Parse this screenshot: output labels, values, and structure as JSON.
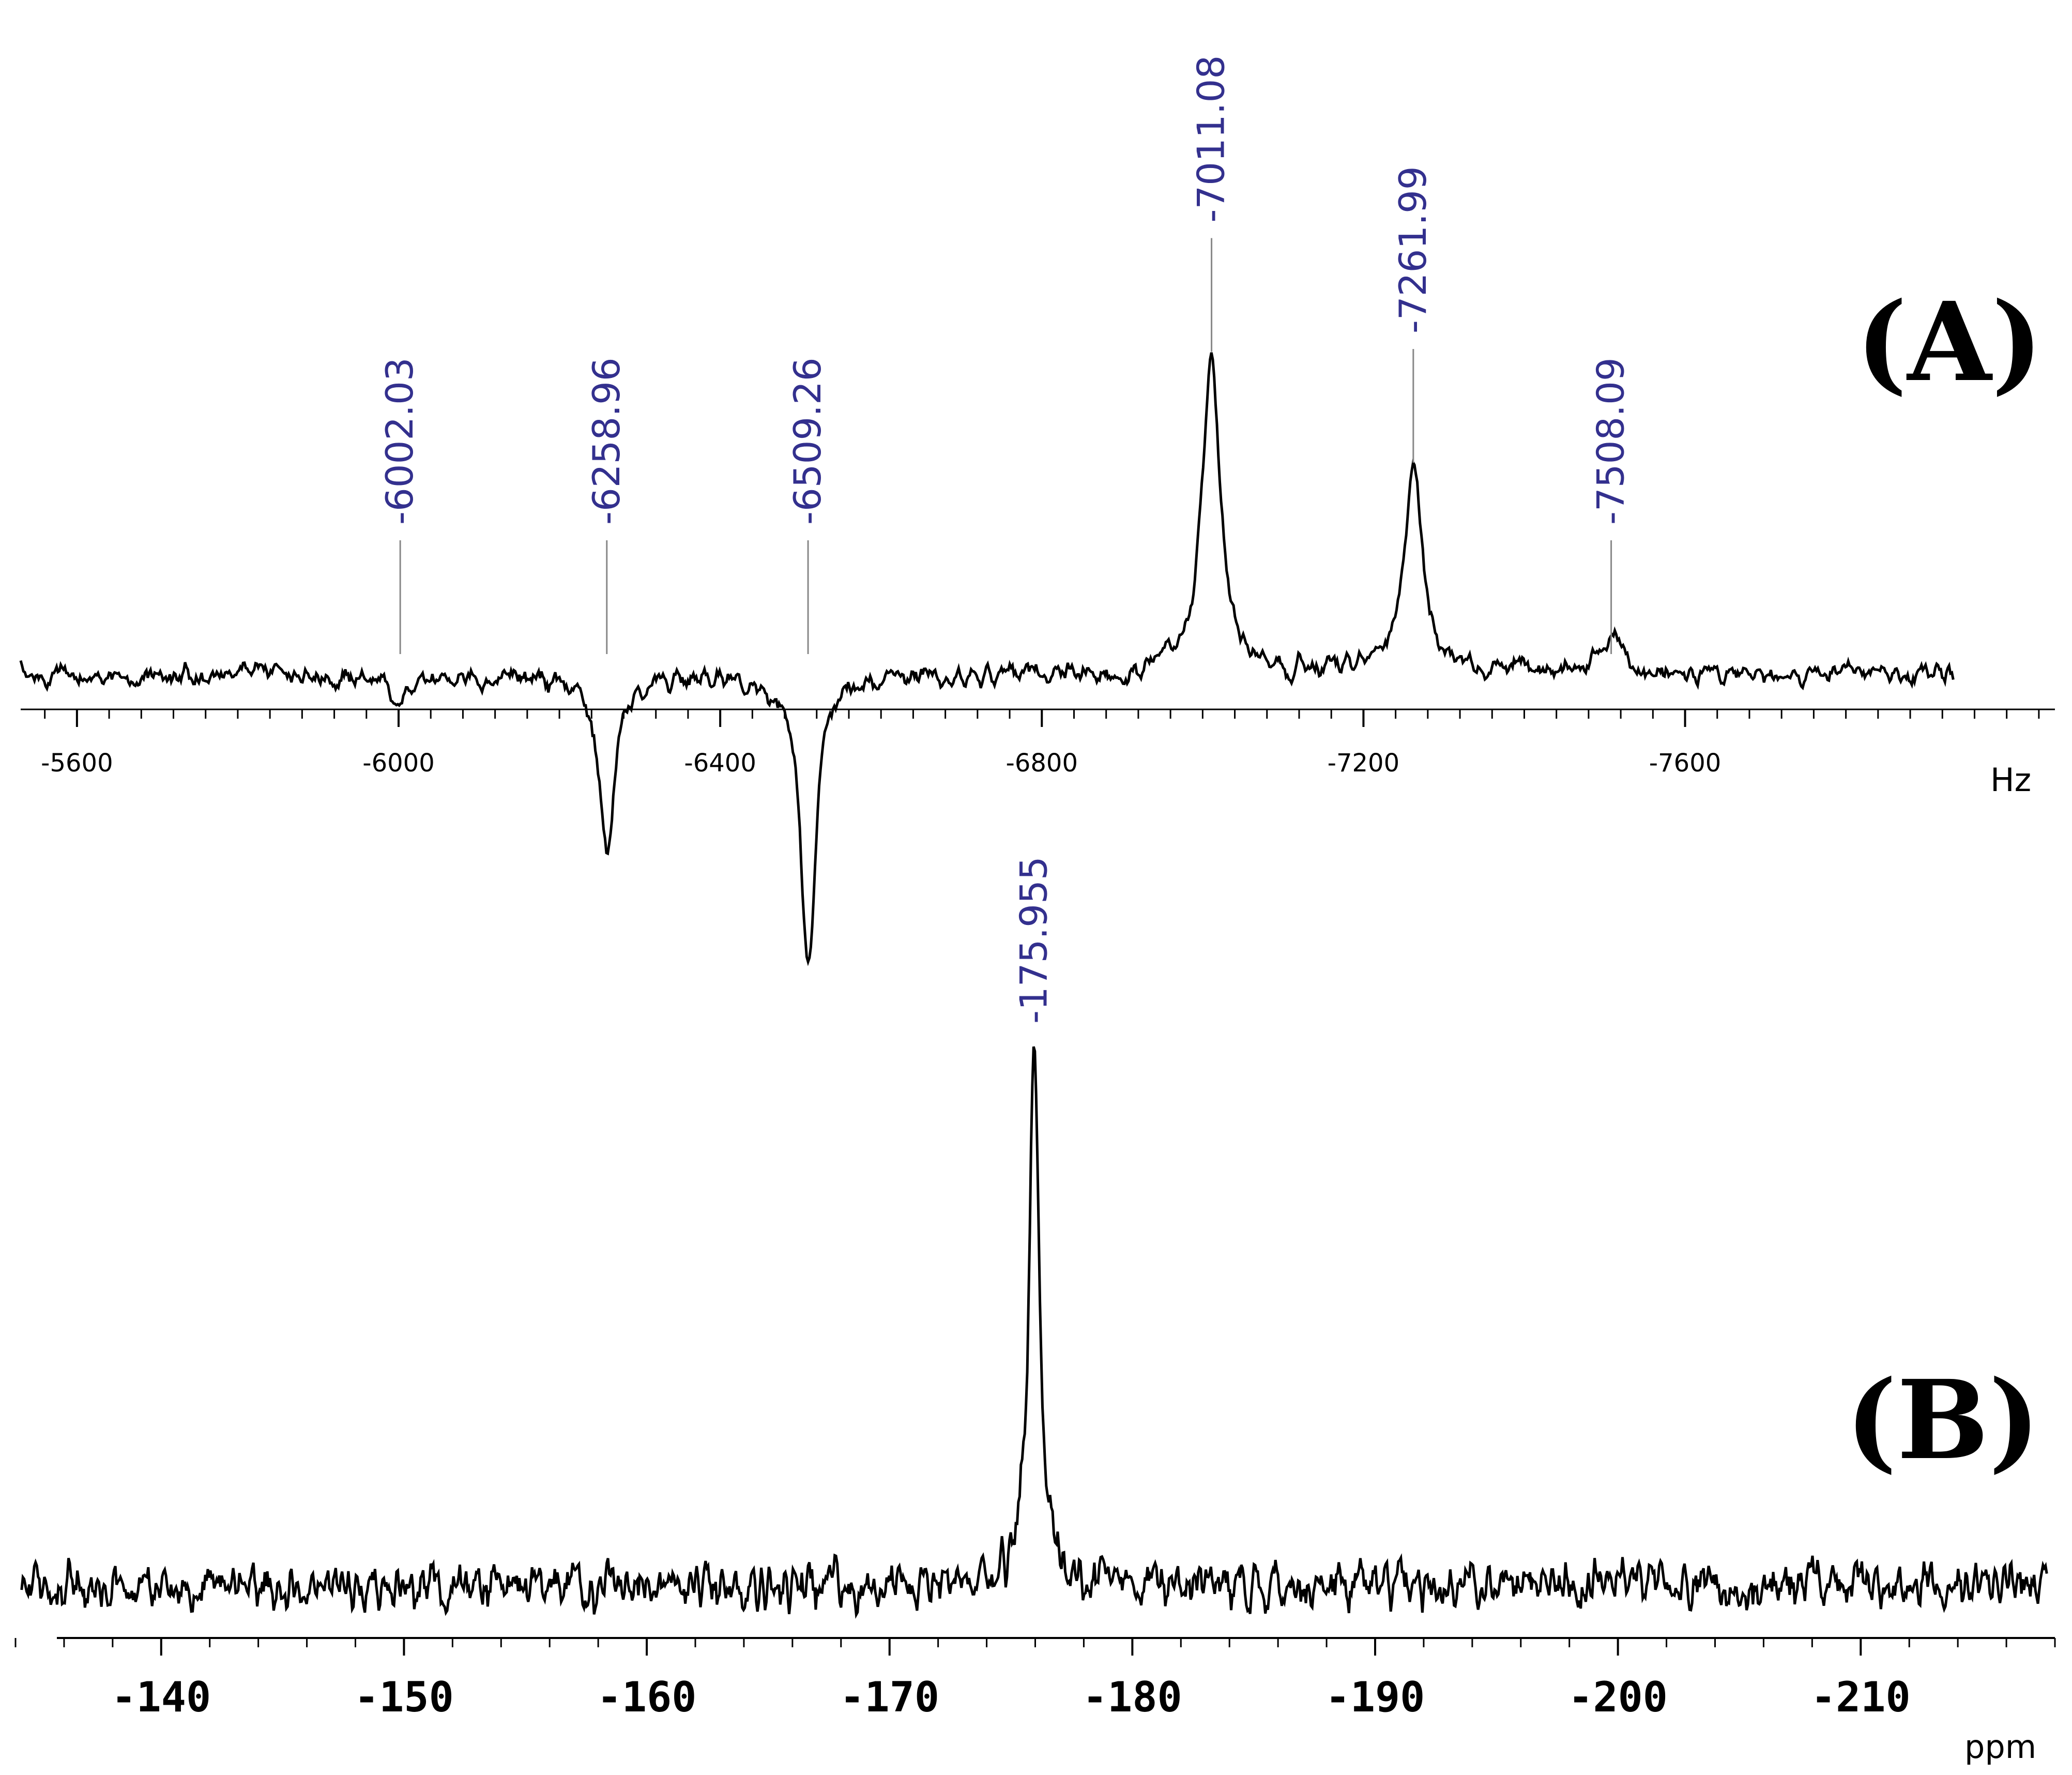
{
  "colors": {
    "trace": "#000000",
    "peak_label": "#33308e",
    "marker": "#888888",
    "background": "#ffffff"
  },
  "chart_data": [
    {
      "type": "line",
      "panel": "(A)",
      "title": "",
      "xlabel": "Hz",
      "ylabel": "",
      "xlim": [
        -5530,
        -8060
      ],
      "x_direction": "decreasing to the right",
      "x_ticks": [
        -5600,
        -6000,
        -6400,
        -6800,
        -7200,
        -7600
      ],
      "x_tick_labels": [
        "-5600",
        "-6000",
        "-6400",
        "-6800",
        "-7200",
        "-7600"
      ],
      "grid": false,
      "legend": "none",
      "peaks": [
        {
          "x": -6002.03,
          "label": "-6002.03",
          "relative_intensity": -0.08,
          "width_hz": 18
        },
        {
          "x": -6258.96,
          "label": "-6258.96",
          "relative_intensity": -0.52,
          "width_hz": 12
        },
        {
          "x": -6509.26,
          "label": "-6509.26",
          "relative_intensity": -0.86,
          "width_hz": 11
        },
        {
          "x": -7011.08,
          "label": "-7011.08",
          "relative_intensity": 0.93,
          "width_hz": 14
        },
        {
          "x": -7261.99,
          "label": "-7261.99",
          "relative_intensity": 0.6,
          "width_hz": 14
        },
        {
          "x": -7508.09,
          "label": "-7508.09",
          "relative_intensity": 0.12,
          "width_hz": 16
        }
      ]
    },
    {
      "type": "line",
      "panel": "(B)",
      "title": "",
      "xlabel": "ppm",
      "ylabel": "",
      "xlim": [
        -134,
        -218
      ],
      "x_direction": "decreasing to the right",
      "x_ticks": [
        -140,
        -150,
        -160,
        -170,
        -180,
        -190,
        -200,
        -210
      ],
      "x_tick_labels": [
        "-140",
        "-150",
        "-160",
        "-170",
        "-180",
        "-190",
        "-200",
        "-210"
      ],
      "grid": false,
      "legend": "none",
      "peaks": [
        {
          "x": -175.955,
          "label": "-175.955",
          "relative_intensity": 1.0,
          "width_ppm": 0.25
        }
      ]
    }
  ]
}
